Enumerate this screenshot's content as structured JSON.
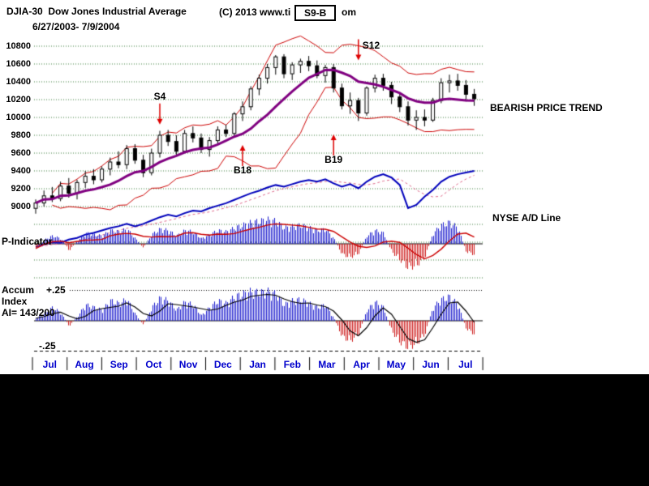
{
  "header": {
    "title": "DJIA-30  Dow Jones Industrial Average",
    "date_range": "6/27/2003- 7/9/2004",
    "copyright_prefix": "(C) 2013 www.ti",
    "copyright_suffix": "om",
    "signal_box": "S9-B"
  },
  "side_labels": {
    "trend": "BEARISH PRICE TREND",
    "ad_line": "NYSE A/D Line"
  },
  "panel_labels": {
    "p_indicator": "P-Indicator",
    "accum_1": "Accum",
    "accum_2": "Index",
    "accum_3": "AI= 143/200",
    "plus_level": "+.25",
    "minus_level": "-.25"
  },
  "colors": {
    "candle": "#000000",
    "band": "#cc0000",
    "ma_price": "#800080",
    "ad_line": "#0000bb",
    "ad_ma": "#dd6688",
    "histogram_pos": "#1a1acc",
    "histogram_neg": "#cc1a1a",
    "p_ma": "#cc0000",
    "accum_ma": "#000000",
    "grid": "#3a7a3a",
    "month_label": "#0000cc",
    "signal_arrow": "#dd0000",
    "axis_text": "#000000"
  },
  "chart_data": {
    "type": "candlestick",
    "title": "DJIA-30 Dow Jones Industrial Average",
    "period": "weekly",
    "x_axis": {
      "months": [
        "Jul",
        "Aug",
        "Sep",
        "Oct",
        "Nov",
        "Dec",
        "Jan",
        "Feb",
        "Mar",
        "Apr",
        "May",
        "Jun",
        "Jul"
      ]
    },
    "y_axis": {
      "ticks": [
        10800,
        10600,
        10400,
        10200,
        10000,
        9800,
        9600,
        9400,
        9200,
        9000
      ],
      "ylim": [
        8900,
        10900
      ],
      "step": 200,
      "grid": true
    },
    "series": {
      "djia_ohlc": [
        [
          8980,
          9080,
          8920,
          9040
        ],
        [
          9040,
          9180,
          9000,
          9120
        ],
        [
          9120,
          9220,
          9050,
          9090
        ],
        [
          9090,
          9280,
          9060,
          9230
        ],
        [
          9230,
          9320,
          9100,
          9150
        ],
        [
          9150,
          9300,
          9080,
          9270
        ],
        [
          9270,
          9400,
          9210,
          9340
        ],
        [
          9340,
          9420,
          9250,
          9300
        ],
        [
          9300,
          9450,
          9270,
          9420
        ],
        [
          9420,
          9550,
          9350,
          9500
        ],
        [
          9500,
          9620,
          9430,
          9470
        ],
        [
          9470,
          9690,
          9420,
          9650
        ],
        [
          9650,
          9700,
          9480,
          9520
        ],
        [
          9520,
          9580,
          9330,
          9380
        ],
        [
          9380,
          9650,
          9350,
          9600
        ],
        [
          9600,
          9850,
          9550,
          9800
        ],
        [
          9800,
          9860,
          9680,
          9730
        ],
        [
          9730,
          9800,
          9580,
          9620
        ],
        [
          9620,
          9860,
          9600,
          9820
        ],
        [
          9820,
          9900,
          9720,
          9770
        ],
        [
          9770,
          9820,
          9600,
          9640
        ],
        [
          9640,
          9780,
          9560,
          9740
        ],
        [
          9740,
          9900,
          9700,
          9860
        ],
        [
          9860,
          9920,
          9780,
          9820
        ],
        [
          9820,
          10060,
          9800,
          10040
        ],
        [
          10040,
          10180,
          9960,
          10120
        ],
        [
          10120,
          10350,
          10080,
          10320
        ],
        [
          10320,
          10480,
          10250,
          10440
        ],
        [
          10440,
          10600,
          10380,
          10560
        ],
        [
          10560,
          10700,
          10480,
          10680
        ],
        [
          10680,
          10710,
          10440,
          10490
        ],
        [
          10490,
          10620,
          10420,
          10590
        ],
        [
          10590,
          10660,
          10500,
          10630
        ],
        [
          10630,
          10690,
          10520,
          10580
        ],
        [
          10580,
          10640,
          10440,
          10470
        ],
        [
          10470,
          10590,
          10390,
          10560
        ],
        [
          10560,
          10600,
          10280,
          10330
        ],
        [
          10330,
          10380,
          10090,
          10130
        ],
        [
          10130,
          10280,
          10040,
          10190
        ],
        [
          10190,
          10220,
          9960,
          10050
        ],
        [
          10050,
          10350,
          10020,
          10330
        ],
        [
          10330,
          10480,
          10280,
          10440
        ],
        [
          10440,
          10490,
          10300,
          10360
        ],
        [
          10360,
          10400,
          10150,
          10230
        ],
        [
          10230,
          10280,
          10060,
          10120
        ],
        [
          10120,
          10180,
          9910,
          9970
        ],
        [
          9970,
          10080,
          9860,
          10000
        ],
        [
          10000,
          10090,
          9900,
          9970
        ],
        [
          9970,
          10220,
          9950,
          10190
        ],
        [
          10190,
          10440,
          10160,
          10390
        ],
        [
          10390,
          10480,
          10280,
          10410
        ],
        [
          10410,
          10490,
          10300,
          10360
        ],
        [
          10360,
          10420,
          10180,
          10260
        ],
        [
          10260,
          10320,
          10130,
          10210
        ]
      ],
      "nyse_ad_line": [
        5,
        8,
        11,
        10,
        14,
        16,
        20,
        22,
        25,
        28,
        30,
        33,
        30,
        33,
        37,
        41,
        44,
        42,
        46,
        49,
        48,
        52,
        55,
        58,
        62,
        66,
        70,
        73,
        77,
        80,
        78,
        81,
        84,
        86,
        84,
        87,
        82,
        78,
        81,
        76,
        84,
        90,
        93,
        89,
        80,
        52,
        56,
        66,
        74,
        84,
        90,
        93,
        95,
        97
      ],
      "p_indicator": [
        -0.2,
        0.15,
        0.3,
        0.2,
        -0.25,
        0.1,
        0.4,
        0.35,
        0.3,
        0.5,
        0.45,
        0.55,
        0.2,
        -0.15,
        0.35,
        0.55,
        0.5,
        0.3,
        0.5,
        0.45,
        0.2,
        0.35,
        0.5,
        0.45,
        0.6,
        0.7,
        0.8,
        0.85,
        0.9,
        0.85,
        0.6,
        0.65,
        0.7,
        0.6,
        0.5,
        0.55,
        0.2,
        -0.4,
        -0.5,
        -0.35,
        0.3,
        0.5,
        0.4,
        -0.3,
        -0.6,
        -0.9,
        -0.8,
        -0.5,
        0.4,
        0.7,
        0.8,
        0.6,
        -0.3,
        -0.4
      ],
      "accum_index": [
        0.02,
        0.05,
        0.1,
        0.06,
        -0.04,
        0.03,
        0.12,
        0.1,
        0.08,
        0.15,
        0.13,
        0.16,
        0.05,
        -0.03,
        0.1,
        0.17,
        0.15,
        0.08,
        0.14,
        0.12,
        0.04,
        0.1,
        0.15,
        0.13,
        0.18,
        0.2,
        0.22,
        0.21,
        0.22,
        0.2,
        0.12,
        0.15,
        0.16,
        0.13,
        0.1,
        0.12,
        0.02,
        -0.12,
        -0.15,
        -0.1,
        0.08,
        0.14,
        0.1,
        -0.08,
        -0.16,
        -0.2,
        -0.17,
        -0.1,
        0.1,
        0.16,
        0.18,
        0.12,
        -0.06,
        -0.1
      ]
    },
    "overlays": {
      "bollinger_period": 10,
      "bollinger_k": 2,
      "ma_period": 10,
      "ad_ma_period": 5,
      "p_ma_period": 5,
      "accum_ma_period": 3
    },
    "levels": {
      "accum_upper": 0.25,
      "accum_lower": -0.25
    },
    "ad_ylim": [
      0,
      100
    ],
    "p_ylim": [
      -1,
      1
    ],
    "accum_ylim": [
      -0.3,
      0.3
    ],
    "annotations": [
      {
        "label": "S4",
        "type": "sell",
        "week": 15,
        "price": 9920,
        "label_side": "top"
      },
      {
        "label": "S12",
        "type": "sell",
        "week": 39,
        "price": 10640,
        "label_side": "right"
      },
      {
        "label": "B18",
        "type": "buy",
        "week": 25,
        "price": 9690,
        "label_side": "bottom"
      },
      {
        "label": "B19",
        "type": "buy",
        "week": 36,
        "price": 9810,
        "label_side": "bottom"
      }
    ]
  }
}
